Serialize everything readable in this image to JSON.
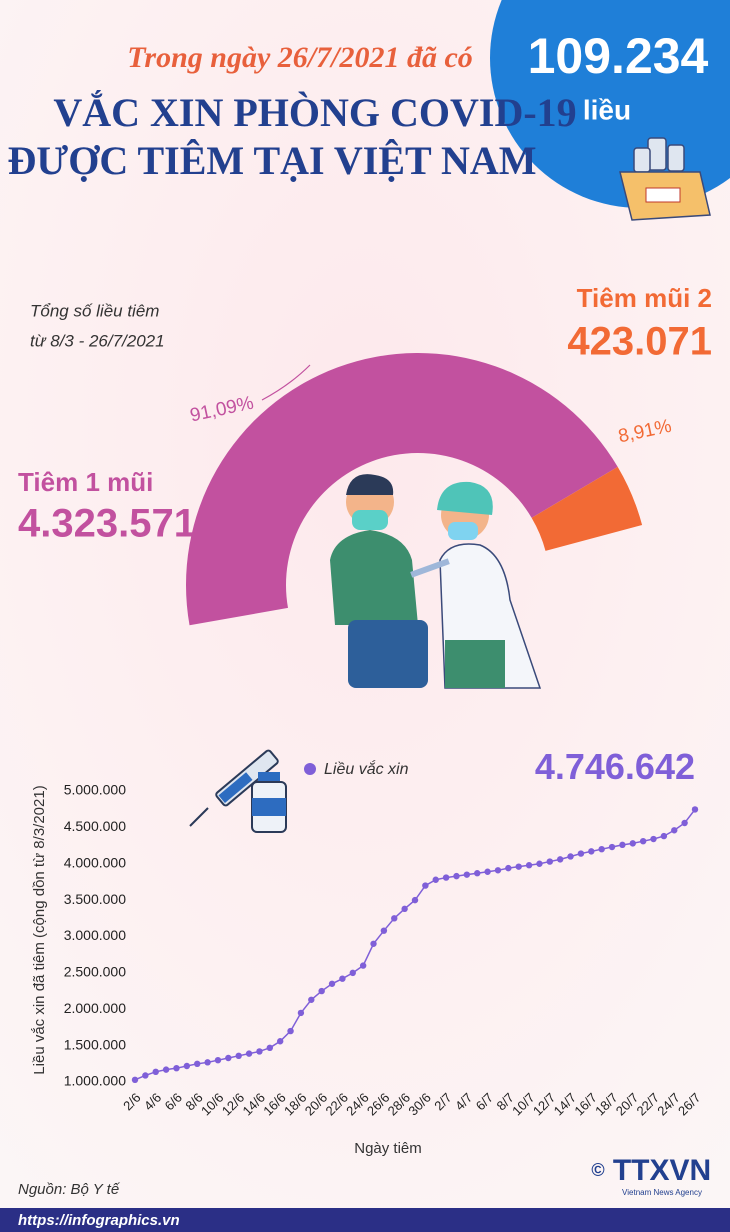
{
  "header": {
    "intro": "Trong ngày 26/7/2021 đã có",
    "title_line1": "VẮC XIN PHÒNG COVID-19",
    "title_line2": "ĐƯỢC TIÊM TẠI VIỆT NAM",
    "daily_doses": "109.234",
    "daily_unit": "liều"
  },
  "chart_data": [
    {
      "type": "donut",
      "subtitle_line1": "Tổng số liều tiêm",
      "subtitle_line2": "từ 8/3 - 26/7/2021",
      "categories": [
        "Tiêm 1 mũi",
        "Tiêm mũi 2"
      ],
      "values": [
        91.09,
        8.91
      ],
      "value_labels": [
        "91,09%",
        "8,91%"
      ],
      "dose_labels": [
        "4.323.571",
        "423.071"
      ],
      "colors": [
        "#c2519f",
        "#f26a35"
      ]
    },
    {
      "type": "line",
      "x_label": "Ngày tiêm",
      "y_label": "Liều vắc xin đã tiêm (cộng dồn từ 8/3/2021)",
      "legend": "top-center",
      "grid": false,
      "categories": [
        "2/6",
        null,
        "4/6",
        null,
        "6/6",
        null,
        "8/6",
        null,
        "10/6",
        null,
        "12/6",
        null,
        "14/6",
        null,
        "16/6",
        null,
        "18/6",
        null,
        "20/6",
        null,
        "22/6",
        null,
        "24/6",
        null,
        "26/6",
        null,
        "28/6",
        null,
        "30/6",
        null,
        "2/7",
        null,
        "4/7",
        null,
        "6/7",
        null,
        "8/7",
        null,
        "10/7",
        null,
        "12/7",
        null,
        "14/7",
        null,
        "16/7",
        null,
        "18/7",
        null,
        "20/7",
        null,
        "22/7",
        null,
        "24/7",
        null,
        "26/7"
      ],
      "series": [
        {
          "name": "Liều vắc xin",
          "color": "#7f5fd8",
          "values": [
            1030000,
            1090000,
            1140000,
            1170000,
            1190000,
            1220000,
            1250000,
            1270000,
            1300000,
            1330000,
            1360000,
            1390000,
            1420000,
            1470000,
            1560000,
            1700000,
            1950000,
            2130000,
            2250000,
            2350000,
            2420000,
            2500000,
            2600000,
            2900000,
            3080000,
            3250000,
            3380000,
            3500000,
            3700000,
            3780000,
            3810000,
            3830000,
            3850000,
            3870000,
            3890000,
            3910000,
            3940000,
            3960000,
            3980000,
            4000000,
            4030000,
            4060000,
            4100000,
            4140000,
            4170000,
            4200000,
            4230000,
            4260000,
            4280000,
            4310000,
            4340000,
            4380000,
            4460000,
            4560000,
            4746642
          ],
          "value_labels": [
            null,
            null,
            null,
            null,
            null,
            null,
            null,
            null,
            null,
            null,
            null,
            null,
            null,
            null,
            null,
            null,
            null,
            null,
            null,
            null,
            null,
            null,
            null,
            null,
            null,
            null,
            null,
            null,
            null,
            null,
            null,
            null,
            null,
            null,
            null,
            null,
            null,
            null,
            null,
            null,
            null,
            null,
            null,
            null,
            null,
            null,
            null,
            null,
            null,
            null,
            null,
            null,
            null,
            null,
            "4.746.642"
          ]
        }
      ],
      "ylim": [
        1000000,
        5000000
      ],
      "yticks": [
        {
          "value": 1000000,
          "label": "1.000.000"
        },
        {
          "value": 1500000,
          "label": "1.500.000"
        },
        {
          "value": 2000000,
          "label": "2.000.000"
        },
        {
          "value": 2500000,
          "label": "2.500.000"
        },
        {
          "value": 3000000,
          "label": "3.000.000"
        },
        {
          "value": 3500000,
          "label": "3.500.000"
        },
        {
          "value": 4000000,
          "label": "4.000.000"
        },
        {
          "value": 4500000,
          "label": "4.500.000"
        },
        {
          "value": 5000000,
          "label": "5.000.000"
        }
      ]
    }
  ],
  "footer": {
    "source": "Nguồn: Bộ Y tế",
    "url": "https://infographics.vn",
    "copyright": "©",
    "logo": "TTXVN",
    "logo_sub": "Vietnam News Agency"
  }
}
